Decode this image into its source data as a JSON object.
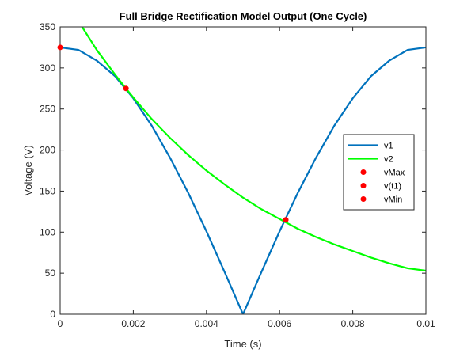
{
  "chart_data": {
    "type": "line",
    "title": "Full Bridge Rectification Model Output (One Cycle)",
    "xlabel": "Time (s)",
    "ylabel": "Voltage (V)",
    "xlim": [
      0,
      0.01
    ],
    "ylim": [
      0,
      350
    ],
    "xticks": [
      0,
      0.002,
      0.004,
      0.006,
      0.008,
      0.01
    ],
    "xtick_labels": [
      "0",
      "0.002",
      "0.004",
      "0.006",
      "0.008",
      "0.01"
    ],
    "yticks": [
      0,
      50,
      100,
      150,
      200,
      250,
      300,
      350
    ],
    "ytick_labels": [
      "0",
      "50",
      "100",
      "150",
      "200",
      "250",
      "300",
      "350"
    ],
    "grid": false,
    "legend_position": "right",
    "series": [
      {
        "name": "v1",
        "color": "#0072BD",
        "style": "line",
        "x": [
          0,
          0.0005,
          0.001,
          0.0015,
          0.002,
          0.0025,
          0.003,
          0.0035,
          0.004,
          0.0045,
          0.005,
          0.0055,
          0.006,
          0.0065,
          0.007,
          0.0075,
          0.008,
          0.0085,
          0.009,
          0.0095,
          0.01
        ],
        "values": [
          325,
          322,
          309,
          290,
          263,
          230,
          191,
          148,
          101,
          51,
          0,
          51,
          101,
          148,
          191,
          230,
          263,
          290,
          309,
          322,
          325
        ]
      },
      {
        "name": "v2",
        "color": "#00FF00",
        "style": "line",
        "x": [
          0.0006,
          0.001,
          0.0015,
          0.0018,
          0.002,
          0.0025,
          0.003,
          0.0035,
          0.004,
          0.0045,
          0.005,
          0.0055,
          0.006,
          0.0065,
          0.007,
          0.0075,
          0.008,
          0.0085,
          0.009,
          0.0095,
          0.01
        ],
        "values": [
          350,
          322,
          292,
          275,
          264,
          238,
          215,
          194,
          175,
          158,
          142,
          128,
          116,
          104,
          94,
          85,
          77,
          69,
          62,
          56,
          53
        ]
      },
      {
        "name": "vMax",
        "color": "#FF0000",
        "style": "marker",
        "x": [
          0
        ],
        "values": [
          325
        ]
      },
      {
        "name": "v(t1)",
        "color": "#FF0000",
        "style": "marker",
        "x": [
          0.0018
        ],
        "values": [
          275
        ]
      },
      {
        "name": "vMin",
        "color": "#FF0000",
        "style": "marker",
        "x": [
          0.00617
        ],
        "values": [
          115
        ]
      }
    ]
  }
}
